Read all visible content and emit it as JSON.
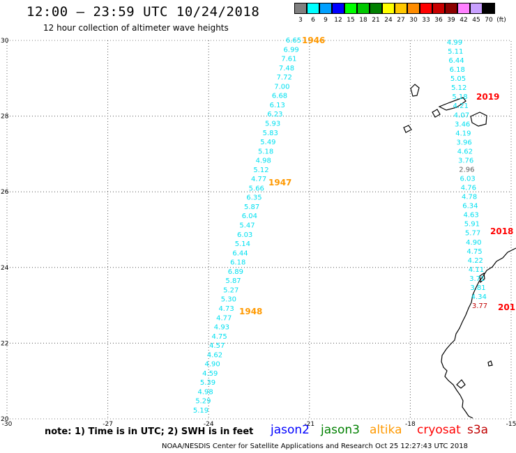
{
  "header": {
    "title": "12:00 – 23:59 UTC 10/24/2018",
    "subtitle": "12 hour collection of altimeter wave heights"
  },
  "colorbar": {
    "unit": "(ft)",
    "swatches": [
      {
        "label": "3",
        "color": "#808080"
      },
      {
        "label": "6",
        "color": "#00ffff"
      },
      {
        "label": "9",
        "color": "#00a0ff"
      },
      {
        "label": "12",
        "color": "#0000ff"
      },
      {
        "label": "15",
        "color": "#00ff00"
      },
      {
        "label": "18",
        "color": "#00c800"
      },
      {
        "label": "21",
        "color": "#008000"
      },
      {
        "label": "24",
        "color": "#ffff00"
      },
      {
        "label": "27",
        "color": "#ffc800"
      },
      {
        "label": "30",
        "color": "#ff8c00"
      },
      {
        "label": "33",
        "color": "#ff0000"
      },
      {
        "label": "36",
        "color": "#c80000"
      },
      {
        "label": "39",
        "color": "#8c0000"
      },
      {
        "label": "42",
        "color": "#ff80ff"
      },
      {
        "label": "45",
        "color": "#c8a0ff"
      },
      {
        "label": "70",
        "color": "#000000"
      }
    ]
  },
  "map": {
    "lat_ticks": [
      "30",
      "28",
      "26",
      "24",
      "22",
      "20"
    ],
    "lon_ticks": [
      "-30",
      "-27",
      "-24",
      "-21",
      "-18",
      "-15"
    ],
    "tracks": [
      {
        "satellite": "altika",
        "color": "#00e0f0",
        "values": [
          "6.65",
          "6.99",
          "7.61",
          "7.48",
          "7.72",
          "7.00",
          "6.68",
          "6.13",
          "6.23",
          "5.93",
          "5.83",
          "5.49",
          "5.18",
          "4.98",
          "5.12",
          "4.77",
          "5.66",
          "6.35",
          "5.87",
          "6.04",
          "5.47",
          "6.03",
          "5.14",
          "6.44",
          "6.18",
          "6.89",
          "5.87",
          "5.27",
          "5.30",
          "4.73",
          "4.77",
          "4.93",
          "4.75",
          "4.57",
          "4.62",
          "4.90",
          "4.59",
          "5.39",
          "4.98",
          "5.29",
          "5.19"
        ]
      },
      {
        "satellite": "cryosat",
        "color": "#00e0f0",
        "values": [
          "4.99",
          "5.11",
          "6.44",
          "6.18",
          "5.05",
          "5.12",
          "5.18",
          "4.21",
          "4.07",
          "3.46",
          "4.19",
          "3.96",
          "4.62",
          "3.76",
          "2.96",
          "6.03",
          "4.76",
          "4.78",
          "6.34",
          "4.63",
          "5.91",
          "5.77",
          "4.90",
          "4.75",
          "4.22",
          "4.11",
          "3.71",
          "3.81",
          "4.34",
          "3.77"
        ]
      }
    ],
    "time_labels": [
      {
        "text": "1946",
        "color": "#ff9900"
      },
      {
        "text": "1947",
        "color": "#ff9900"
      },
      {
        "text": "1948",
        "color": "#ff9900"
      },
      {
        "text": "2019",
        "color": "#ff0000"
      },
      {
        "text": "2018",
        "color": "#ff0000"
      },
      {
        "text": "201",
        "color": "#ff0000"
      }
    ]
  },
  "footer": {
    "note": "note:  1) Time is in UTC;  2) SWH is in feet",
    "satellites": [
      {
        "name": "jason2",
        "color": "#0000ff"
      },
      {
        "name": "jason3",
        "color": "#008000"
      },
      {
        "name": "altika",
        "color": "#ff9900"
      },
      {
        "name": "cryosat",
        "color": "#ff0000"
      },
      {
        "name": "s3a",
        "color": "#c00000"
      }
    ],
    "credit": "NOAA/NESDIS Center for Satellite Applications and Research    Oct 25 12:27:43 UTC 2018"
  }
}
